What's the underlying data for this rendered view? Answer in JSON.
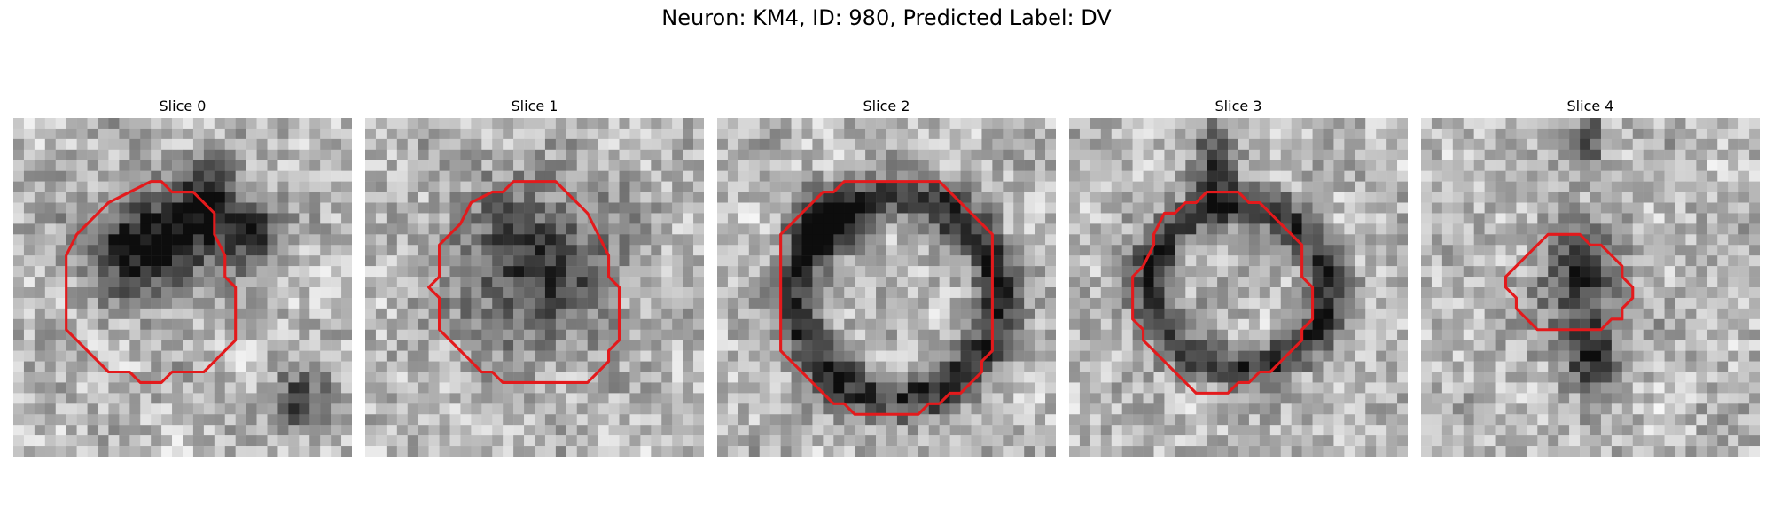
{
  "figure": {
    "title": "Neuron: KM4, ID: 980, Predicted Label: DV"
  },
  "panels": [
    {
      "title": "Slice 0"
    },
    {
      "title": "Slice 1"
    },
    {
      "title": "Slice 2"
    },
    {
      "title": "Slice 3"
    },
    {
      "title": "Slice 4"
    }
  ],
  "colors": {
    "contour": "#e31a1c",
    "colormap": "gray"
  }
}
